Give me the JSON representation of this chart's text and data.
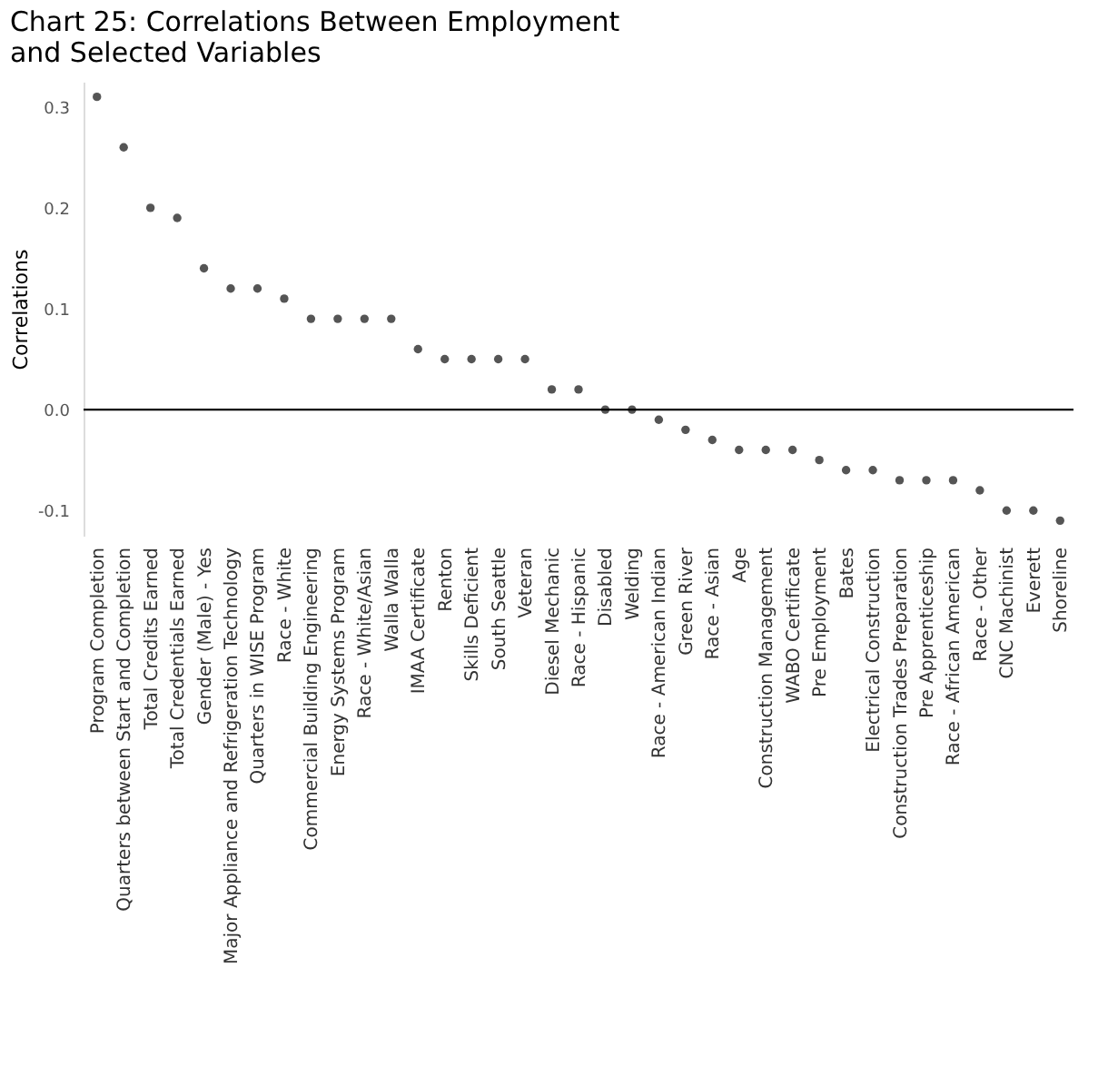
{
  "chart_data": {
    "type": "scatter",
    "title": [
      "Chart 25: Correlations Between Employment",
      "and Selected Variables"
    ],
    "ylabel": "Correlations",
    "categories": [
      "Program Completion",
      "Quarters between Start and Completion",
      "Total Credits Earned",
      "Total Credentials Earned",
      "Gender (Male) - Yes",
      "Major Appliance and Refrigeration Technology",
      "Quarters in WISE Program",
      "Race - White",
      "Commercial Building Engineering",
      "Energy Systems Program",
      "Race - White/Asian",
      "Walla Walla",
      "IMAA Certificate",
      "Renton",
      "Skills Deficient",
      "South Seattle",
      "Veteran",
      "Diesel Mechanic",
      "Race - Hispanic",
      "Disabled",
      "Welding",
      "Race - American Indian",
      "Green River",
      "Race - Asian",
      "Age",
      "Construction Management",
      "WABO Certificate",
      "Pre Employment",
      "Bates",
      "Electrical Construction",
      "Construction Trades Preparation",
      "Pre Apprenticeship",
      "Race - African American",
      "Race - Other",
      "CNC Machinist",
      "Everett",
      "Shoreline"
    ],
    "series": [
      {
        "color": "#555555",
        "values": [
          0.31,
          0.26,
          0.2,
          0.19,
          0.14,
          0.12,
          0.12,
          0.11,
          0.09,
          0.09,
          0.09,
          0.09,
          0.06,
          0.05,
          0.05,
          0.05,
          0.05,
          0.02,
          0.02,
          0,
          0,
          -0.01,
          -0.02,
          -0.03,
          -0.04,
          -0.04,
          -0.04,
          -0.05,
          -0.06,
          -0.06,
          -0.07,
          -0.07,
          -0.07,
          -0.08,
          -0.1,
          -0.1,
          -0.11
        ]
      }
    ],
    "yticks": [
      {
        "value": -0.1,
        "label": "-0.1"
      },
      {
        "value": 0,
        "label": "0.0"
      },
      {
        "value": 0.1,
        "label": "0.1"
      },
      {
        "value": 0.2,
        "label": "0.2"
      },
      {
        "value": 0.3,
        "label": "0.3"
      }
    ],
    "ylim": [
      -0.125,
      0.325
    ],
    "ref_lines": [
      {
        "axis": "y",
        "value": 0,
        "color": "#000000"
      }
    ],
    "grid": false,
    "marker": "circle"
  }
}
